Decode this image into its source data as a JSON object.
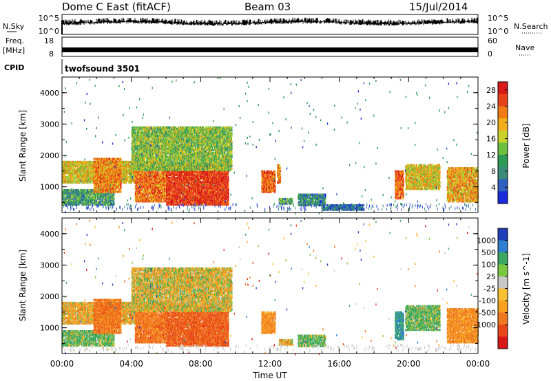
{
  "header": {
    "station": "Dome C East (fitACF)",
    "beam": "Beam 03",
    "date": "15/Jul/2014"
  },
  "panels": {
    "nsky": {
      "label": "N.Sky",
      "tick_top": "10^5",
      "tick_bottom": "10^0",
      "right_label": "N.Search",
      "right_tick_top": "10^5",
      "right_tick_bottom": "10^0"
    },
    "freq": {
      "label_top": "Freq.",
      "label_bottom": "[MHz]",
      "tick_top": "18",
      "tick_bottom": "8",
      "right_label": "Nave",
      "right_tick_top": "60",
      "right_tick_bottom": "0"
    },
    "cpid": {
      "label": "CPID",
      "value": "twofsound 3501"
    }
  },
  "chart_data": [
    {
      "type": "heatmap",
      "name": "power",
      "ylabel": "Slant Range [km]",
      "xlabel": "",
      "xlim": [
        0,
        24
      ],
      "ylim": [
        180,
        4500
      ],
      "yticks": [
        "1000",
        "2000",
        "3000",
        "4000"
      ],
      "xticks": [
        "00:00",
        "04:00",
        "08:00",
        "12:00",
        "16:00",
        "20:00",
        "00:00"
      ],
      "colorbar": {
        "label": "Power [dB]",
        "ticks": [
          "4",
          "8",
          "12",
          "16",
          "20",
          "24",
          "28"
        ],
        "range": [
          0,
          30
        ],
        "colors": [
          "#1a2ad8",
          "#2f5fc0",
          "#3a8a7a",
          "#2e9a58",
          "#6cc040",
          "#c9d22a",
          "#f0b01a",
          "#f07a14",
          "#e8421a",
          "#d81a1a"
        ]
      },
      "regions": [
        {
          "t0": 0.0,
          "t1": 4.3,
          "r0": 1100,
          "r1": 1800,
          "value": 18
        },
        {
          "t0": 0.0,
          "t1": 3.0,
          "r0": 400,
          "r1": 900,
          "value": 10
        },
        {
          "t0": 1.8,
          "t1": 3.4,
          "r0": 800,
          "r1": 1900,
          "value": 22
        },
        {
          "t0": 4.2,
          "t1": 6.0,
          "r0": 500,
          "r1": 1800,
          "value": 23
        },
        {
          "t0": 6.0,
          "t1": 9.6,
          "r0": 400,
          "r1": 1700,
          "value": 27
        },
        {
          "t0": 4.0,
          "t1": 9.8,
          "r0": 1500,
          "r1": 2900,
          "value": 14
        },
        {
          "t0": 11.5,
          "t1": 12.3,
          "r0": 800,
          "r1": 1500,
          "value": 24
        },
        {
          "t0": 12.4,
          "t1": 12.6,
          "r0": 1100,
          "r1": 1700,
          "value": 22
        },
        {
          "t0": 12.5,
          "t1": 13.3,
          "r0": 430,
          "r1": 620,
          "value": 10
        },
        {
          "t0": 13.6,
          "t1": 15.2,
          "r0": 380,
          "r1": 760,
          "value": 8
        },
        {
          "t0": 15.0,
          "t1": 17.4,
          "r0": 230,
          "r1": 420,
          "value": 6
        },
        {
          "t0": 19.2,
          "t1": 19.7,
          "r0": 600,
          "r1": 1500,
          "value": 24
        },
        {
          "t0": 19.8,
          "t1": 21.8,
          "r0": 900,
          "r1": 1700,
          "value": 18
        },
        {
          "t0": 22.2,
          "t1": 24.0,
          "r0": 500,
          "r1": 1600,
          "value": 20
        }
      ]
    },
    {
      "type": "heatmap",
      "name": "velocity",
      "ylabel": "Slant Range [km]",
      "xlabel": "Time UT",
      "xlim": [
        0,
        24
      ],
      "ylim": [
        180,
        4500
      ],
      "yticks": [
        "1000",
        "2000",
        "3000",
        "4000"
      ],
      "xticks": [
        "00:00",
        "04:00",
        "08:00",
        "12:00",
        "16:00",
        "20:00",
        "00:00"
      ],
      "colorbar": {
        "label": "Velocity [m s^-1]",
        "ticks": [
          "1000",
          "500",
          "100",
          "25",
          "-25",
          "-100",
          "-500",
          "-1000"
        ],
        "colors": [
          "#1e3fb8",
          "#2f7fd0",
          "#3aa860",
          "#7ac840",
          "#c8c8c8",
          "#f8c030",
          "#f8a020",
          "#f07820",
          "#e84818",
          "#d81818"
        ]
      },
      "regions": [
        {
          "t0": 0.0,
          "t1": 4.3,
          "r0": 1100,
          "r1": 1800,
          "value": -100
        },
        {
          "t0": 0.0,
          "t1": 3.0,
          "r0": 400,
          "r1": 900,
          "value": 100
        },
        {
          "t0": 1.8,
          "t1": 3.4,
          "r0": 800,
          "r1": 1900,
          "value": -300
        },
        {
          "t0": 4.2,
          "t1": 6.0,
          "r0": 500,
          "r1": 1800,
          "value": -300
        },
        {
          "t0": 6.0,
          "t1": 9.6,
          "r0": 400,
          "r1": 1700,
          "value": -400
        },
        {
          "t0": 4.0,
          "t1": 9.8,
          "r0": 1500,
          "r1": 2900,
          "value": -50
        },
        {
          "t0": 11.5,
          "t1": 12.3,
          "r0": 800,
          "r1": 1500,
          "value": -200
        },
        {
          "t0": 12.5,
          "t1": 13.3,
          "r0": 430,
          "r1": 620,
          "value": -100
        },
        {
          "t0": 13.6,
          "t1": 15.2,
          "r0": 380,
          "r1": 760,
          "value": 100
        },
        {
          "t0": 19.2,
          "t1": 19.7,
          "r0": 600,
          "r1": 1500,
          "value": 300
        },
        {
          "t0": 19.8,
          "t1": 21.8,
          "r0": 900,
          "r1": 1700,
          "value": 100
        },
        {
          "t0": 22.2,
          "t1": 24.0,
          "r0": 500,
          "r1": 1600,
          "value": -200
        }
      ]
    }
  ]
}
